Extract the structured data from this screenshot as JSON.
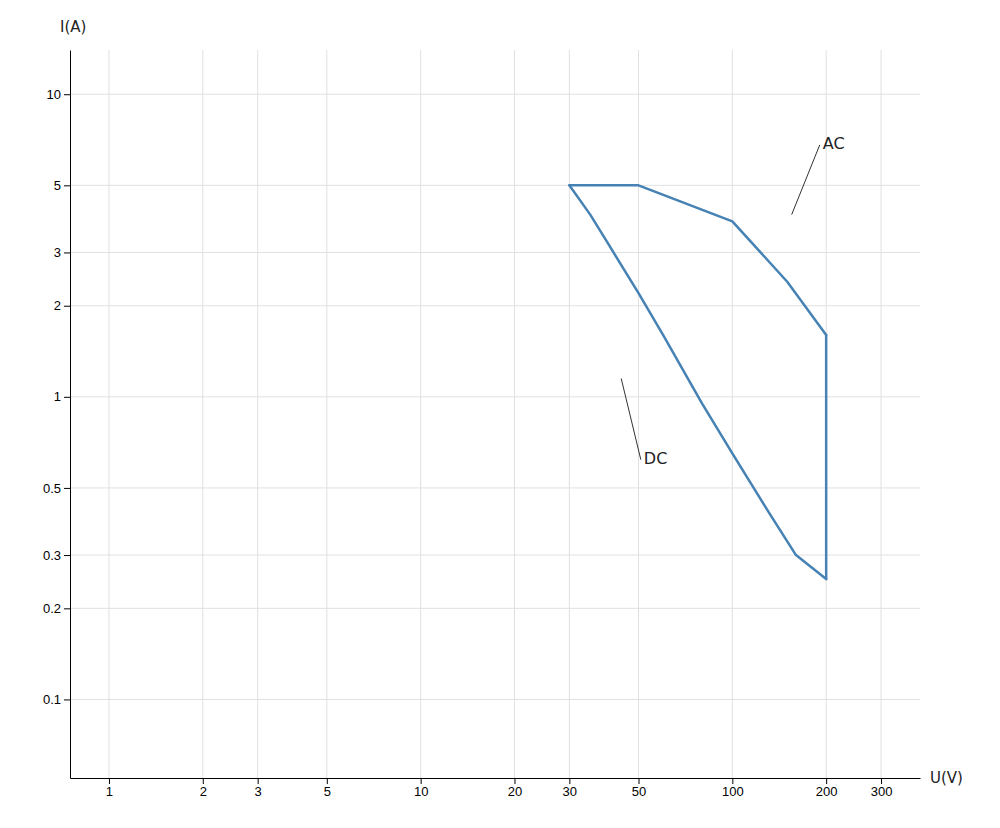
{
  "chart_data": {
    "type": "line",
    "log": true,
    "grid": true,
    "xlabel": "U(V)",
    "ylabel": "I(A)",
    "xlim": [
      0.75,
      400
    ],
    "ylim": [
      0.055,
      14
    ],
    "xticks": [
      1,
      2,
      3,
      5,
      10,
      20,
      30,
      50,
      100,
      200,
      300
    ],
    "yticks": [
      0.1,
      0.2,
      0.3,
      0.5,
      1,
      2,
      3,
      5,
      10
    ],
    "series": [
      {
        "x": [
          30,
          35,
          40,
          50,
          60,
          80,
          100,
          130,
          160,
          200
        ],
        "values": [
          5.0,
          4.0,
          3.2,
          2.2,
          1.6,
          0.95,
          0.65,
          0.42,
          0.3,
          0.25
        ]
      },
      {
        "x": [
          30,
          50,
          100,
          150,
          200
        ],
        "values": [
          5.0,
          5.0,
          3.8,
          2.4,
          1.6
        ]
      },
      {
        "x": [
          200,
          200
        ],
        "values": [
          1.6,
          0.25
        ]
      }
    ],
    "annotations": [
      {
        "text": "AC",
        "x": 155,
        "y": 4.0,
        "text_x": 195,
        "text_y": 6.8
      },
      {
        "text": "DC",
        "x": 44,
        "y": 1.15,
        "text_x": 52,
        "text_y": 0.62
      }
    ]
  }
}
